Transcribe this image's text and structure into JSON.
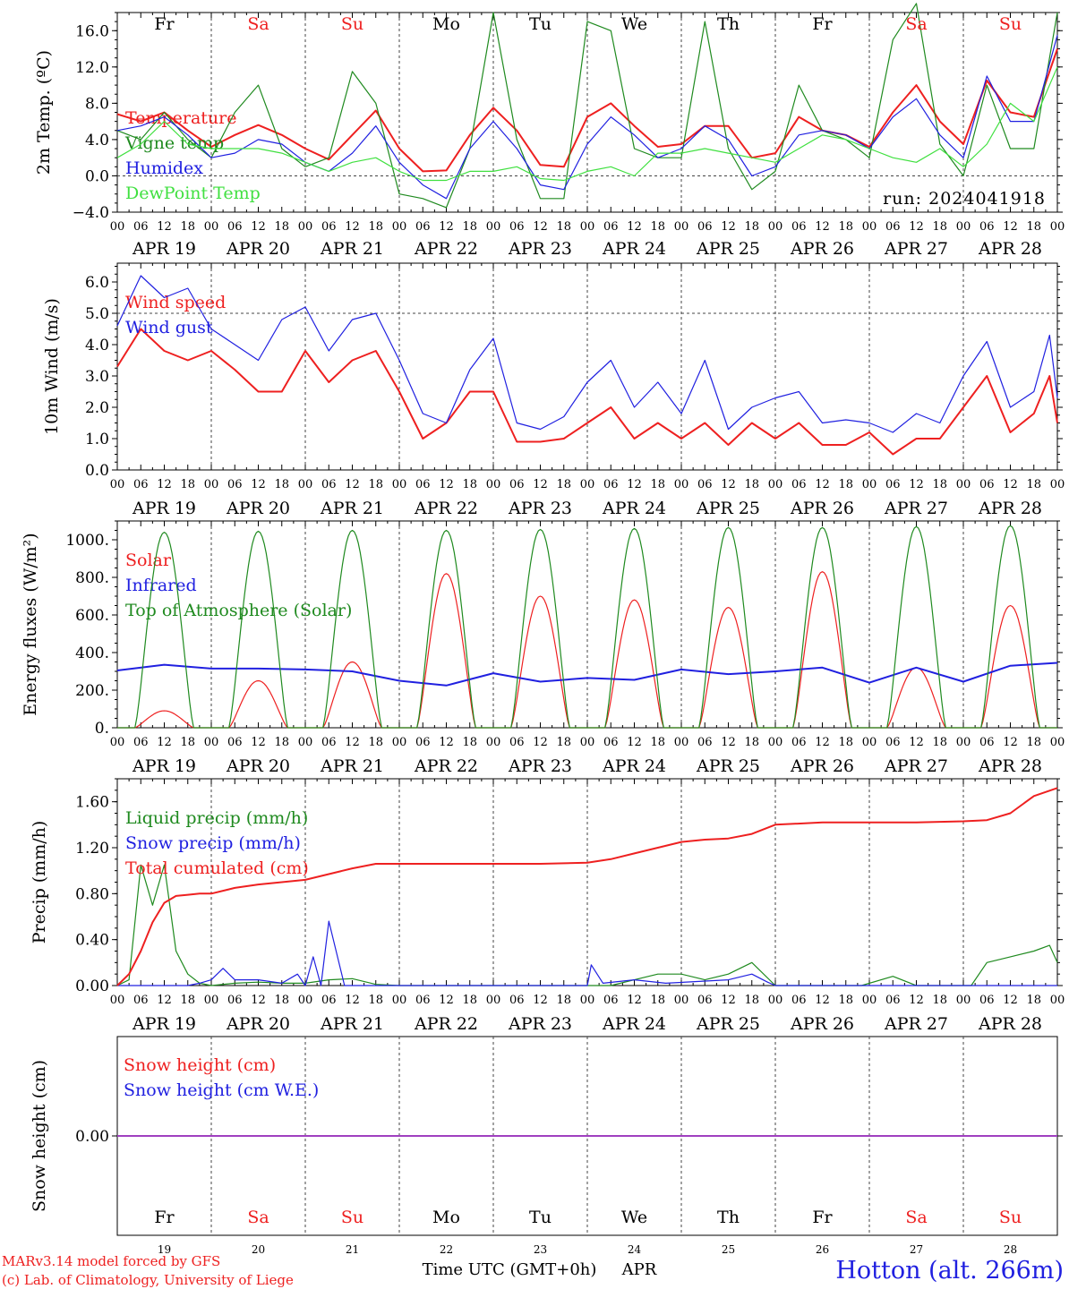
{
  "days": [
    "Fr",
    "Sa",
    "Su",
    "Mo",
    "Tu",
    "We",
    "Th",
    "Fr",
    "Sa",
    "Su"
  ],
  "weekend_days": [
    1,
    2,
    8,
    9
  ],
  "date_labels": [
    "APR 19",
    "APR 20",
    "APR 21",
    "APR 22",
    "APR 23",
    "APR 24",
    "APR 25",
    "APR 26",
    "APR 27",
    "APR 28"
  ],
  "day_numbers": [
    "19",
    "20",
    "21",
    "22",
    "23",
    "24",
    "25",
    "26",
    "27",
    "28"
  ],
  "hour_ticks": [
    "00",
    "06",
    "12",
    "18"
  ],
  "end_tick": "00",
  "colors": {
    "red": "#ee2020",
    "darkgreen": "#1f8a1f",
    "blue": "#2020e0",
    "lightgreen": "#40e040",
    "purple": "#a040c0",
    "weekday": "#000000",
    "weekend": "#ee2020"
  },
  "run_label": "run: 2024041918",
  "footer": {
    "credit1": "MARv3.14 model forced by GFS",
    "credit2": "(c) Lab. of Climatology, University of Liege",
    "xlabel": "Time UTC (GMT+0h)",
    "month": "APR",
    "station": "Hotton (alt. 266m)"
  },
  "chart_data": [
    {
      "type": "line",
      "ylabel": "2m Temp. (ºC)",
      "ylim": [
        -4,
        18
      ],
      "yticks": [
        -4,
        0,
        4,
        8,
        12,
        16
      ],
      "ytick_labels": [
        "−4.0",
        "0.0",
        "4.0",
        "8.0",
        "12.0",
        "16.0"
      ],
      "dashed_hlines": [
        0
      ],
      "x_unit": "hours since APR 19 00 UTC",
      "series": [
        {
          "name": "Temperature",
          "color": "red",
          "x": [
            0,
            6,
            12,
            18,
            24,
            30,
            36,
            42,
            48,
            54,
            60,
            66,
            72,
            78,
            84,
            90,
            96,
            102,
            108,
            114,
            120,
            126,
            132,
            138,
            144,
            150,
            156,
            162,
            168,
            174,
            180,
            186,
            192,
            198,
            204,
            210,
            216,
            222,
            228,
            234,
            240
          ],
          "y": [
            6.8,
            6.0,
            7.0,
            5.0,
            3.2,
            4.5,
            5.6,
            4.5,
            3.0,
            1.8,
            4.5,
            7.2,
            3.0,
            0.5,
            0.6,
            4.5,
            7.5,
            5.0,
            1.2,
            1.0,
            6.5,
            8.0,
            5.5,
            3.2,
            3.5,
            5.5,
            5.5,
            2.0,
            2.5,
            6.5,
            5.0,
            4.5,
            3.2,
            7.0,
            10.0,
            6.0,
            3.5,
            10.5,
            7.0,
            6.5,
            14.0
          ]
        },
        {
          "name": "Vigne temp",
          "color": "darkgreen",
          "x": [
            0,
            6,
            12,
            18,
            24,
            30,
            36,
            42,
            48,
            54,
            60,
            66,
            72,
            78,
            84,
            90,
            96,
            102,
            108,
            114,
            120,
            126,
            132,
            138,
            144,
            150,
            156,
            162,
            168,
            174,
            180,
            186,
            192,
            198,
            204,
            210,
            216,
            222,
            228,
            234,
            240
          ],
          "y": [
            5.0,
            4.0,
            7.0,
            4.0,
            2.0,
            7.0,
            10.0,
            3.0,
            1.0,
            2.0,
            11.5,
            8.0,
            -2.0,
            -2.5,
            -3.5,
            3.0,
            18.0,
            4.0,
            -2.5,
            -2.5,
            17.0,
            16.0,
            3.0,
            2.0,
            2.0,
            17.0,
            3.0,
            -1.5,
            0.5,
            10.0,
            5.0,
            4.0,
            2.0,
            15.0,
            19.0,
            3.5,
            0.0,
            10.0,
            3.0,
            3.0,
            18.0
          ]
        },
        {
          "name": "Humidex",
          "color": "blue",
          "x": [
            0,
            6,
            12,
            18,
            24,
            30,
            36,
            42,
            48,
            54,
            60,
            66,
            72,
            78,
            84,
            90,
            96,
            102,
            108,
            114,
            120,
            126,
            132,
            138,
            144,
            150,
            156,
            162,
            168,
            174,
            180,
            186,
            192,
            198,
            204,
            210,
            216,
            222,
            228,
            234,
            240
          ],
          "y": [
            5.0,
            5.5,
            6.5,
            4.5,
            2.0,
            2.5,
            4.0,
            3.5,
            1.5,
            0.5,
            2.5,
            5.5,
            1.5,
            -1.0,
            -2.5,
            3.0,
            6.0,
            3.0,
            -1.0,
            -1.5,
            3.5,
            6.5,
            4.5,
            2.0,
            3.0,
            5.5,
            4.0,
            0.0,
            1.0,
            4.5,
            5.0,
            4.5,
            3.0,
            6.5,
            8.5,
            4.5,
            2.0,
            11.0,
            6.0,
            6.0,
            15.5
          ]
        },
        {
          "name": "DewPoint Temp",
          "color": "lightgreen",
          "x": [
            0,
            6,
            12,
            18,
            24,
            30,
            36,
            42,
            48,
            54,
            60,
            66,
            72,
            78,
            84,
            90,
            96,
            102,
            108,
            114,
            120,
            126,
            132,
            138,
            144,
            150,
            156,
            162,
            168,
            174,
            180,
            186,
            192,
            198,
            204,
            210,
            216,
            222,
            228,
            234,
            240
          ],
          "y": [
            2.0,
            3.5,
            6.0,
            3.5,
            3.0,
            3.0,
            3.0,
            2.5,
            1.5,
            0.5,
            1.5,
            2.0,
            0.5,
            -0.5,
            -0.5,
            0.5,
            0.5,
            1.0,
            -0.3,
            -0.5,
            0.5,
            1.0,
            0.0,
            2.5,
            2.5,
            3.0,
            2.5,
            2.0,
            1.5,
            3.0,
            4.5,
            4.0,
            3.0,
            2.0,
            1.5,
            3.0,
            1.0,
            3.5,
            8.0,
            6.0,
            12.0
          ]
        }
      ]
    },
    {
      "type": "line",
      "ylabel": "10m Wind (m/s)",
      "ylim": [
        0,
        6.6
      ],
      "yticks": [
        0,
        1,
        2,
        3,
        4,
        5,
        6
      ],
      "ytick_labels": [
        "0.0",
        "1.0",
        "2.0",
        "3.0",
        "4.0",
        "5.0",
        "6.0"
      ],
      "dashed_hlines": [
        5
      ],
      "x_unit": "hours since APR 19 00 UTC",
      "series": [
        {
          "name": "Wind speed",
          "color": "red",
          "x": [
            0,
            6,
            12,
            18,
            24,
            30,
            36,
            42,
            48,
            54,
            60,
            66,
            72,
            78,
            84,
            90,
            96,
            102,
            108,
            114,
            120,
            126,
            132,
            138,
            144,
            150,
            156,
            162,
            168,
            174,
            180,
            186,
            192,
            198,
            204,
            210,
            216,
            222,
            228,
            234,
            238,
            240
          ],
          "y": [
            3.3,
            4.5,
            3.8,
            3.5,
            3.8,
            3.2,
            2.5,
            2.5,
            3.8,
            2.8,
            3.5,
            3.8,
            2.5,
            1.0,
            1.5,
            2.5,
            2.5,
            0.9,
            0.9,
            1.0,
            1.5,
            2.0,
            1.0,
            1.5,
            1.0,
            1.5,
            0.8,
            1.5,
            1.0,
            1.5,
            0.8,
            0.8,
            1.2,
            0.5,
            1.0,
            1.0,
            2.0,
            3.0,
            1.2,
            1.8,
            3.0,
            1.5
          ]
        },
        {
          "name": "Wind gust",
          "color": "blue",
          "x": [
            0,
            6,
            12,
            18,
            24,
            30,
            36,
            42,
            48,
            54,
            60,
            66,
            72,
            78,
            84,
            90,
            96,
            102,
            108,
            114,
            120,
            126,
            132,
            138,
            144,
            150,
            156,
            162,
            168,
            174,
            180,
            186,
            192,
            198,
            204,
            210,
            216,
            222,
            228,
            234,
            238,
            240
          ],
          "y": [
            4.6,
            6.2,
            5.5,
            5.8,
            4.5,
            4.0,
            3.5,
            4.8,
            5.2,
            3.8,
            4.8,
            5.0,
            3.5,
            1.8,
            1.5,
            3.2,
            4.2,
            1.5,
            1.3,
            1.7,
            2.8,
            3.5,
            2.0,
            2.8,
            1.8,
            3.5,
            1.3,
            2.0,
            2.3,
            2.5,
            1.5,
            1.6,
            1.5,
            1.2,
            1.8,
            1.5,
            3.0,
            4.1,
            2.0,
            2.5,
            4.3,
            2.3
          ]
        }
      ]
    },
    {
      "type": "line",
      "ylabel": "Energy fluxes (W/m²)",
      "ylim": [
        0,
        1100
      ],
      "yticks": [
        0,
        200,
        400,
        600,
        800,
        1000
      ],
      "ytick_labels": [
        "0.",
        "200.",
        "400.",
        "600.",
        "800.",
        "1000."
      ],
      "dashed_hlines": [],
      "x_unit": "hours since APR 19 00 UTC",
      "series": [
        {
          "name": "Solar",
          "color": "red",
          "daily_peaks_Wm2": [
            90,
            250,
            350,
            820,
            700,
            680,
            640,
            830,
            320,
            650
          ]
        },
        {
          "name": "Infrared",
          "color": "blue",
          "x": [
            0,
            12,
            24,
            36,
            48,
            60,
            72,
            84,
            96,
            108,
            120,
            132,
            144,
            156,
            168,
            180,
            192,
            204,
            216,
            228,
            240
          ],
          "y": [
            305,
            335,
            315,
            315,
            310,
            300,
            250,
            225,
            290,
            245,
            265,
            255,
            310,
            285,
            300,
            320,
            240,
            320,
            245,
            330,
            345
          ]
        },
        {
          "name": "Top of Atmosphere (Solar)",
          "color": "darkgreen",
          "daily_peaks_Wm2": [
            1040,
            1045,
            1050,
            1050,
            1055,
            1060,
            1065,
            1065,
            1070,
            1075
          ]
        }
      ]
    },
    {
      "type": "line",
      "ylabel": "Precip (mm/h)",
      "ylim": [
        0,
        1.8
      ],
      "yticks": [
        0,
        0.4,
        0.8,
        1.2,
        1.6
      ],
      "ytick_labels": [
        "0.00",
        "0.40",
        "0.80",
        "1.20",
        "1.60"
      ],
      "dashed_hlines": [],
      "x_unit": "hours since APR 19 00 UTC",
      "series": [
        {
          "name": "Liquid precip (mm/h)",
          "color": "darkgreen",
          "x": [
            0,
            3,
            6,
            9,
            12,
            15,
            18,
            21,
            24,
            30,
            36,
            42,
            48,
            54,
            60,
            66,
            72,
            120,
            126,
            132,
            138,
            144,
            150,
            156,
            162,
            168,
            190,
            198,
            204,
            218,
            222,
            228,
            234,
            238,
            240
          ],
          "y": [
            0,
            0.05,
            1.05,
            0.7,
            1.05,
            0.3,
            0.1,
            0.02,
            0,
            0.02,
            0.03,
            0.02,
            0.02,
            0.05,
            0.06,
            0.01,
            0,
            0,
            0,
            0.05,
            0.1,
            0.1,
            0.05,
            0.1,
            0.2,
            0,
            0,
            0.08,
            0,
            0,
            0.2,
            0.25,
            0.3,
            0.35,
            0.2
          ]
        },
        {
          "name": "Snow precip (mm/h)",
          "color": "blue",
          "x": [
            0,
            18,
            21,
            24,
            27,
            30,
            36,
            42,
            46,
            48,
            50,
            52,
            54,
            58,
            120,
            121,
            124,
            132,
            140,
            156,
            162,
            166,
            168,
            200,
            240
          ],
          "y": [
            0,
            0,
            0.02,
            0.05,
            0.15,
            0.05,
            0.05,
            0.02,
            0.1,
            0,
            0.25,
            0,
            0.56,
            0,
            0,
            0.18,
            0.02,
            0.05,
            0.02,
            0.05,
            0.1,
            0.03,
            0,
            0,
            0
          ]
        },
        {
          "name": "Total cumulated (cm)",
          "color": "red",
          "x": [
            0,
            3,
            6,
            9,
            12,
            15,
            18,
            21,
            24,
            30,
            36,
            42,
            48,
            54,
            60,
            66,
            72,
            84,
            96,
            108,
            120,
            126,
            132,
            138,
            144,
            150,
            156,
            162,
            168,
            180,
            192,
            204,
            216,
            222,
            228,
            234,
            240
          ],
          "y": [
            0,
            0.1,
            0.3,
            0.55,
            0.72,
            0.78,
            0.79,
            0.8,
            0.8,
            0.85,
            0.88,
            0.9,
            0.92,
            0.97,
            1.02,
            1.06,
            1.06,
            1.06,
            1.06,
            1.06,
            1.07,
            1.1,
            1.15,
            1.2,
            1.25,
            1.27,
            1.28,
            1.32,
            1.4,
            1.42,
            1.42,
            1.42,
            1.43,
            1.44,
            1.5,
            1.65,
            1.72
          ]
        }
      ]
    },
    {
      "type": "line",
      "ylabel": "Snow height (cm)",
      "ylim": [
        -1,
        1
      ],
      "yticks": [
        0
      ],
      "ytick_labels": [
        "0.00"
      ],
      "dashed_hlines": [],
      "x_unit": "hours since APR 19 00 UTC",
      "series": [
        {
          "name": "Snow height (cm)",
          "color": "red",
          "x": [
            0,
            240
          ],
          "y": [
            0,
            0
          ]
        },
        {
          "name": "Snow height (cm W.E.)",
          "color": "blue",
          "x": [
            0,
            240
          ],
          "y": [
            0,
            0
          ]
        }
      ]
    }
  ]
}
